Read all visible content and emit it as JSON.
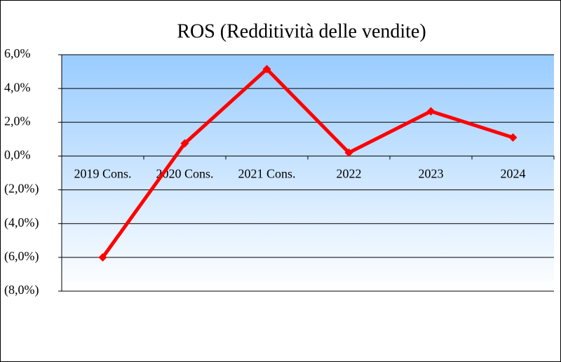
{
  "chart_data": {
    "type": "line",
    "title": "ROS (Redditività delle vendite)",
    "categories": [
      "2019 Cons.",
      "2020 Cons.",
      "2021 Cons.",
      "2022",
      "2023",
      "2024"
    ],
    "series": [
      {
        "name": "ROS",
        "color": "#ff0000",
        "values": [
          -6.0,
          0.75,
          5.15,
          0.2,
          2.65,
          1.1
        ]
      }
    ],
    "ylim": [
      -8,
      6
    ],
    "yticks": [
      {
        "value": -8,
        "label": "(8,0%)"
      },
      {
        "value": -6,
        "label": "(6,0%)"
      },
      {
        "value": -4,
        "label": "(4,0%)"
      },
      {
        "value": -2,
        "label": "(2,0%)"
      },
      {
        "value": 0,
        "label": "0,0%"
      },
      {
        "value": 2,
        "label": "2,0%"
      },
      {
        "value": 4,
        "label": "4,0%"
      },
      {
        "value": 6,
        "label": "6,0%"
      }
    ],
    "grid": true
  }
}
